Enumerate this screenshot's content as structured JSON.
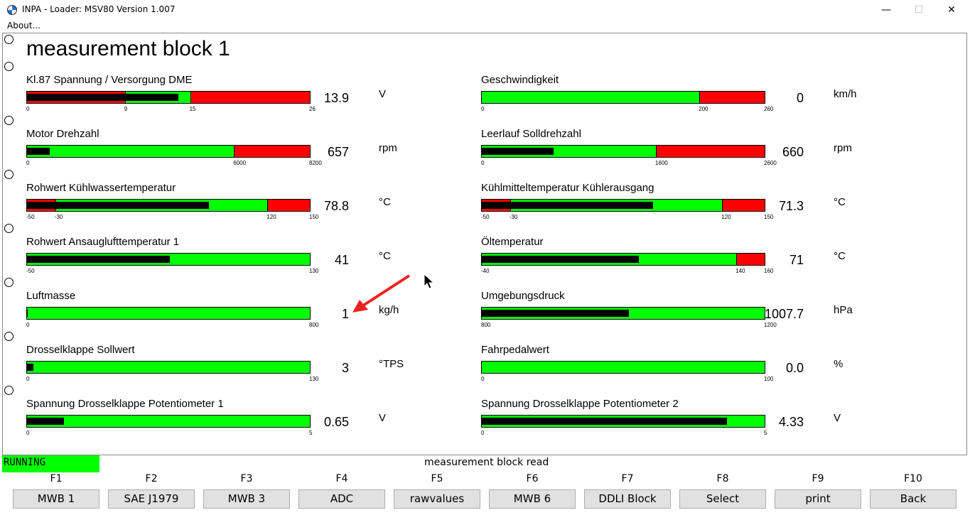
{
  "window": {
    "title": "INPA - Loader:  MSV80 Version 1.007",
    "menu": "About...",
    "minimize": "—",
    "maximize": "☐",
    "close": "✕"
  },
  "page_title": "measurement block 1",
  "measurements": [
    {
      "label": "Kl.87 Spannung / Versorgung DME",
      "value": "13.9",
      "unit": "V",
      "ticks": [
        "0",
        "9",
        "15",
        "26"
      ],
      "min": 0,
      "max": 26,
      "reading": 13.9,
      "green_from": 9,
      "green_to": 15
    },
    {
      "label": "Geschwindigkeit",
      "value": "0",
      "unit": "km/h",
      "ticks": [
        "0",
        "200",
        "260"
      ],
      "min": 0,
      "max": 260,
      "reading": 0,
      "green_from": 0,
      "green_to": 200
    },
    {
      "label": "Motor Drehzahl",
      "value": "657",
      "unit": "rpm",
      "ticks": [
        "0",
        "6000",
        "8200"
      ],
      "min": 0,
      "max": 8200,
      "reading": 657,
      "green_from": 0,
      "green_to": 6000
    },
    {
      "label": "Leerlauf Solldrehzahl",
      "value": "660",
      "unit": "rpm",
      "ticks": [
        "0",
        "1600",
        "2600"
      ],
      "min": 0,
      "max": 2600,
      "reading": 660,
      "green_from": 0,
      "green_to": 1600
    },
    {
      "label": "Rohwert Kühlwassertemperatur",
      "value": "78.8",
      "unit": "°C",
      "ticks": [
        "-50",
        "-30",
        "120",
        "150"
      ],
      "min": -50,
      "max": 150,
      "reading": 78.8,
      "green_from": -30,
      "green_to": 120
    },
    {
      "label": "Kühlmitteltemperatur Kühlerausgang",
      "value": "71.3",
      "unit": "°C",
      "ticks": [
        "-50",
        "-30",
        "120",
        "150"
      ],
      "min": -50,
      "max": 150,
      "reading": 71.3,
      "green_from": -30,
      "green_to": 120
    },
    {
      "label": "Rohwert Ansauglufttemperatur 1",
      "value": "41",
      "unit": "°C",
      "ticks": [
        "-50",
        "130"
      ],
      "min": -50,
      "max": 130,
      "reading": 41,
      "green_from": -50,
      "green_to": 130
    },
    {
      "label": "Öltemperatur",
      "value": "71",
      "unit": "°C",
      "ticks": [
        "-40",
        "140",
        "160"
      ],
      "min": -40,
      "max": 160,
      "reading": 71,
      "green_from": -40,
      "green_to": 140
    },
    {
      "label": "Luftmasse",
      "value": "1",
      "unit": "kg/h",
      "ticks": [
        "0",
        "800"
      ],
      "min": 0,
      "max": 800,
      "reading": 1,
      "green_from": 0,
      "green_to": 800
    },
    {
      "label": "Umgebungsdruck",
      "value": "1007.7",
      "unit": "hPa",
      "ticks": [
        "800",
        "1200"
      ],
      "min": 800,
      "max": 1200,
      "reading": 1007.7,
      "green_from": 800,
      "green_to": 1200
    },
    {
      "label": "Drosselklappe Sollwert",
      "value": "3",
      "unit": "°TPS",
      "ticks": [
        "0",
        "130"
      ],
      "min": 0,
      "max": 130,
      "reading": 3,
      "green_from": 0,
      "green_to": 130
    },
    {
      "label": "Fahrpedalwert",
      "value": "0.0",
      "unit": "%",
      "ticks": [
        "0",
        "100"
      ],
      "min": 0,
      "max": 100,
      "reading": 0,
      "green_from": 0,
      "green_to": 100
    },
    {
      "label": "Spannung Drosselklappe Potentiometer 1",
      "value": "0.65",
      "unit": "V",
      "ticks": [
        "0",
        "5"
      ],
      "min": 0,
      "max": 5,
      "reading": 0.65,
      "green_from": 0,
      "green_to": 5
    },
    {
      "label": "Spannung Drosselklappe Potentiometer 2",
      "value": "4.33",
      "unit": "V",
      "ticks": [
        "0",
        "5"
      ],
      "min": 0,
      "max": 5,
      "reading": 4.33,
      "green_from": 0,
      "green_to": 5
    }
  ],
  "status": {
    "state": "RUNNING",
    "message": "measurement block read",
    "state_color": "#00ff00"
  },
  "function_keys": [
    {
      "key": "F1",
      "label": "MWB 1"
    },
    {
      "key": "F2",
      "label": "SAE J1979"
    },
    {
      "key": "F3",
      "label": "MWB 3"
    },
    {
      "key": "F4",
      "label": "ADC"
    },
    {
      "key": "F5",
      "label": "rawvalues"
    },
    {
      "key": "F6",
      "label": "MWB 6"
    },
    {
      "key": "F7",
      "label": "DDLI Block"
    },
    {
      "key": "F8",
      "label": "Select"
    },
    {
      "key": "F9",
      "label": "print"
    },
    {
      "key": "F10",
      "label": "Back"
    }
  ],
  "colors": {
    "ok": "#00ff00",
    "alarm": "#ff0000",
    "reading": "#000000",
    "annotation": "#ee2222"
  }
}
